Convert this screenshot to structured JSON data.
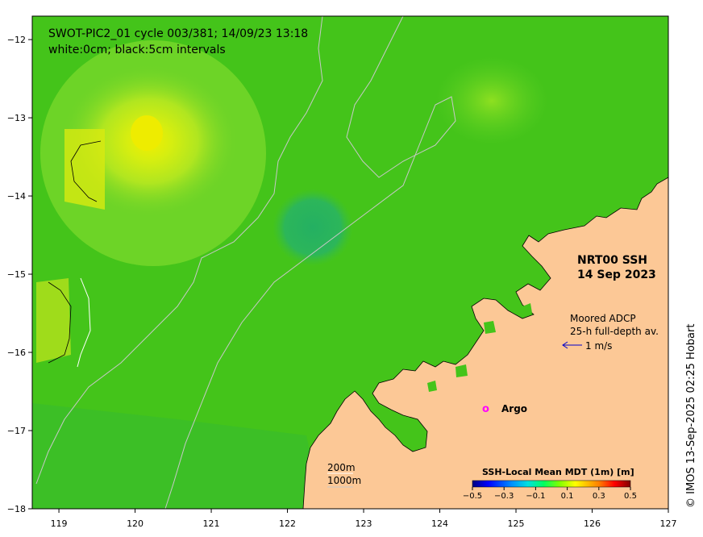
{
  "title": {
    "line1": "SWOT-PIC2_01 cycle 003/381; 14/09/23 13:18",
    "line2": "white:0cm; black:5cm intervals"
  },
  "product": {
    "name": "NRT00 SSH",
    "date": "14 Sep 2023"
  },
  "adcp": {
    "line1": "Moored ADCP",
    "line2": "25-h full-depth av.",
    "scale": "1 m/s",
    "arrow_color": "#0000cc"
  },
  "argo": {
    "symbol": "o",
    "label": "Argo",
    "color": "#ff00ff"
  },
  "bathymetry": {
    "label_200": "200m",
    "label_1000": "1000m"
  },
  "credit": "© IMOS 13-Sep-2025 02:25 Hobart",
  "colorbar": {
    "title": "SSH-Local Mean MDT (1m) [m]",
    "ticks": [
      "−0.5",
      "−0.3",
      "−0.1",
      "0.1",
      "0.3",
      "0.5"
    ],
    "range": [
      -0.5,
      0.5
    ],
    "colors": [
      "#000080",
      "#0000ff",
      "#0080ff",
      "#00ffff",
      "#00ff80",
      "#00ff00",
      "#80ff00",
      "#ffff00",
      "#ff8000",
      "#ff0000",
      "#800000"
    ]
  },
  "axes": {
    "x_ticks": [
      "119",
      "120",
      "121",
      "122",
      "123",
      "124",
      "125",
      "126",
      "127"
    ],
    "y_ticks": [
      "−12",
      "−13",
      "−14",
      "−15",
      "−16",
      "−17",
      "−18"
    ],
    "x_range": [
      118.65,
      127
    ],
    "y_range": [
      -18,
      -11.7
    ]
  },
  "colors": {
    "ocean_base": "#44c41a",
    "land": "#fcc896",
    "high": "#e0ea10",
    "low": "#22b050"
  }
}
